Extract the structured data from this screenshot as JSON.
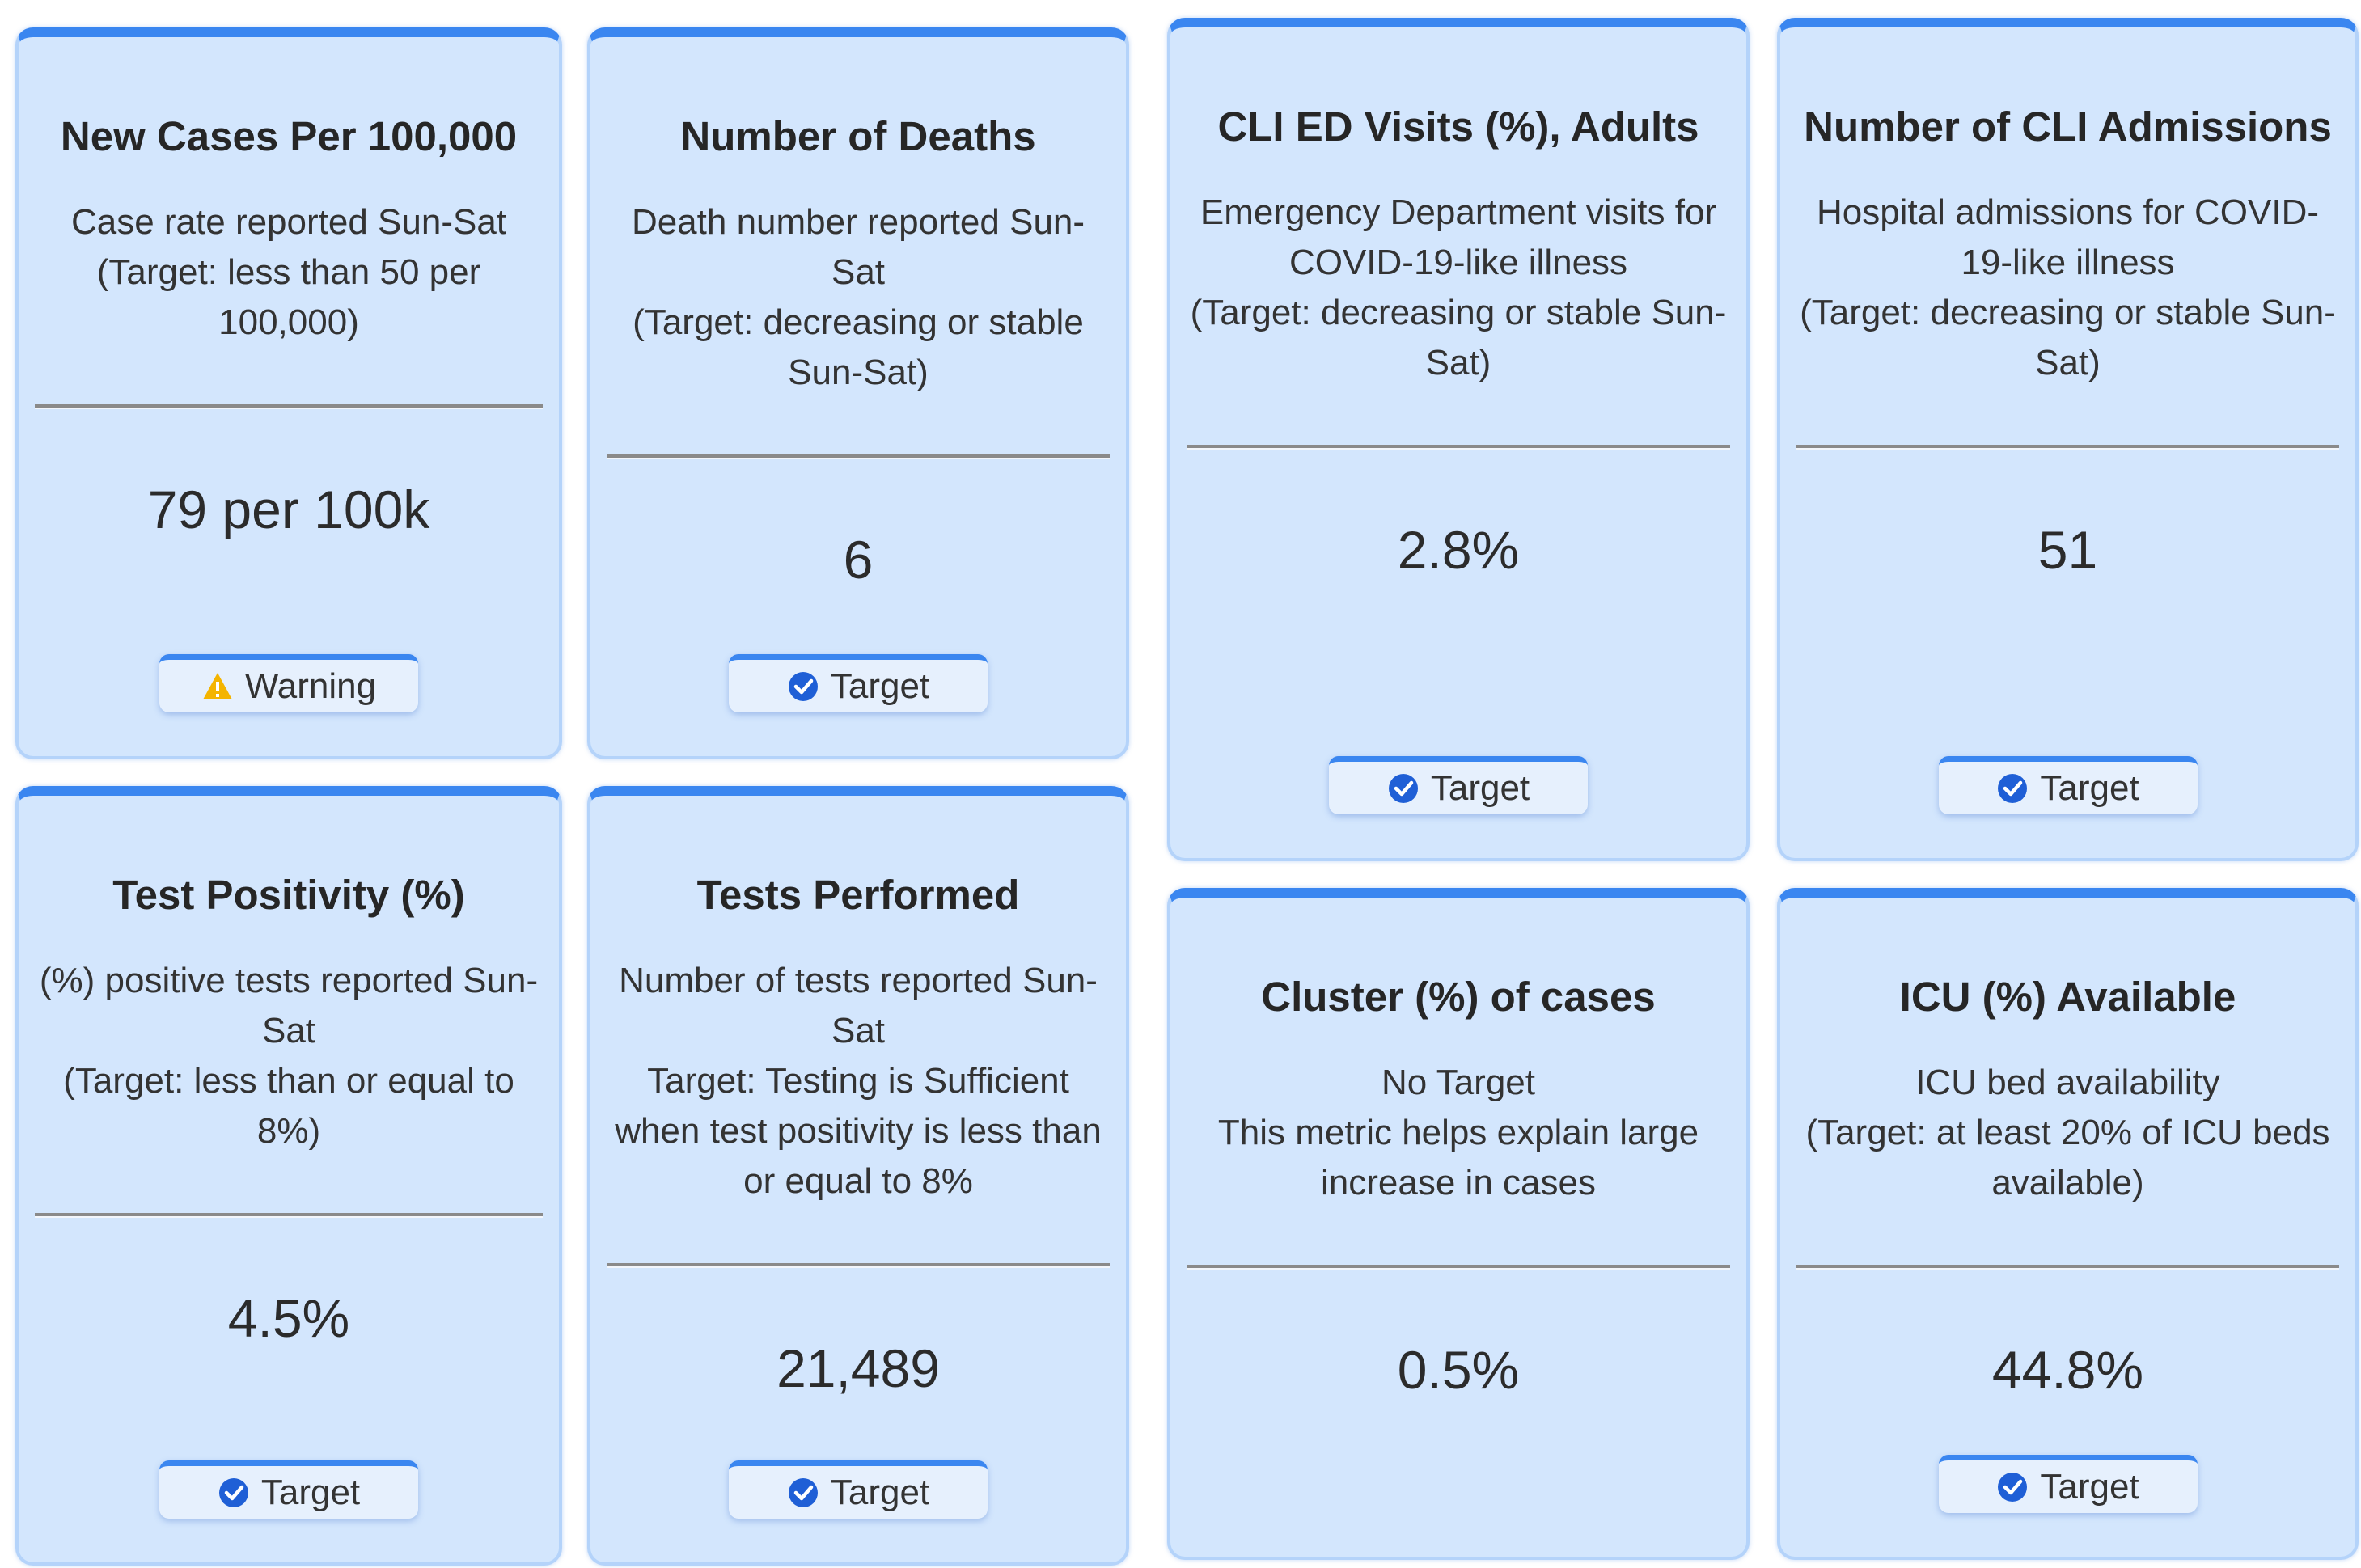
{
  "cards": [
    {
      "title": "New Cases Per 100,000",
      "description": [
        "Case rate reported Sun-Sat",
        "(Target: less than 50 per 100,000)"
      ],
      "value": "79 per 100k",
      "badge": {
        "label": "Warning",
        "icon": "warning"
      }
    },
    {
      "title": "Number of Deaths",
      "description": [
        "Death number reported Sun-Sat",
        "(Target: decreasing or stable Sun-Sat)"
      ],
      "value": "6",
      "badge": {
        "label": "Target",
        "icon": "check"
      }
    },
    {
      "title": "CLI ED Visits (%), Adults",
      "description": [
        "Emergency Department visits for COVID-19-like illness",
        "(Target: decreasing or stable Sun-Sat)"
      ],
      "value": "2.8%",
      "badge": {
        "label": "Target",
        "icon": "check"
      }
    },
    {
      "title": "Number of CLI Admissions",
      "description": [
        "Hospital admissions for COVID-19-like illness",
        "(Target: decreasing or stable Sun-Sat)"
      ],
      "value": "51",
      "badge": {
        "label": "Target",
        "icon": "check"
      }
    },
    {
      "title": "Test Positivity (%)",
      "description": [
        "(%) positive tests reported Sun-Sat",
        "(Target: less than or equal to 8%)"
      ],
      "value": "4.5%",
      "badge": {
        "label": "Target",
        "icon": "check"
      }
    },
    {
      "title": "Tests Performed",
      "description": [
        "Number of tests reported Sun-Sat",
        "Target: Testing is Sufficient when test positivity is less than or equal to 8%"
      ],
      "value": "21,489",
      "badge": {
        "label": "Target",
        "icon": "check"
      }
    },
    {
      "title": "Cluster (%) of cases",
      "description": [
        "No Target",
        "This metric helps explain large increase in cases"
      ],
      "value": "0.5%"
    },
    {
      "title": "ICU (%) Available",
      "description": [
        "ICU bed availability",
        "(Target: at least 20% of ICU beds available)"
      ],
      "value": "44.8%",
      "badge": {
        "label": "Target",
        "icon": "check"
      }
    }
  ]
}
